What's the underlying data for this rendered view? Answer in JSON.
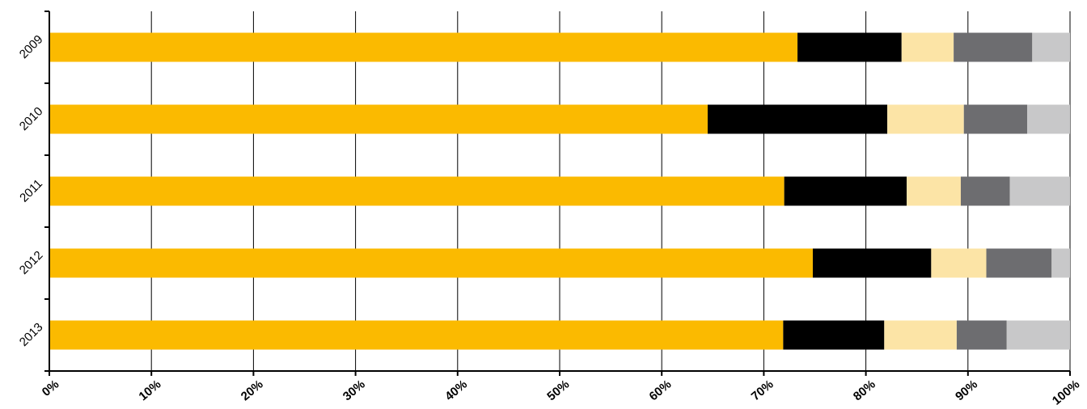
{
  "chart_data": {
    "type": "bar",
    "orientation": "horizontal",
    "stacked": "percent",
    "categories": [
      "2009",
      "2010",
      "2011",
      "2012",
      "2013"
    ],
    "series": [
      {
        "color": "#FBBA00",
        "values": [
          73.3,
          64.5,
          72.0,
          74.8,
          71.9
        ]
      },
      {
        "color": "#000000",
        "values": [
          10.2,
          17.6,
          12.0,
          11.6,
          9.9
        ]
      },
      {
        "color": "#FCE4A6",
        "values": [
          5.1,
          7.5,
          5.3,
          5.4,
          7.1
        ]
      },
      {
        "color": "#6D6D70",
        "values": [
          7.7,
          6.2,
          4.8,
          6.4,
          4.9
        ]
      },
      {
        "color": "#C8C8C9",
        "values": [
          3.7,
          4.2,
          5.9,
          1.8,
          6.2
        ]
      }
    ],
    "xlim": [
      0,
      100
    ],
    "x_ticks": [
      "0%",
      "10%",
      "20%",
      "30%",
      "40%",
      "50%",
      "60%",
      "70%",
      "80%",
      "90%",
      "100%"
    ],
    "grid": "vertical",
    "legend": "none",
    "title": "",
    "xlabel": "",
    "ylabel": ""
  }
}
